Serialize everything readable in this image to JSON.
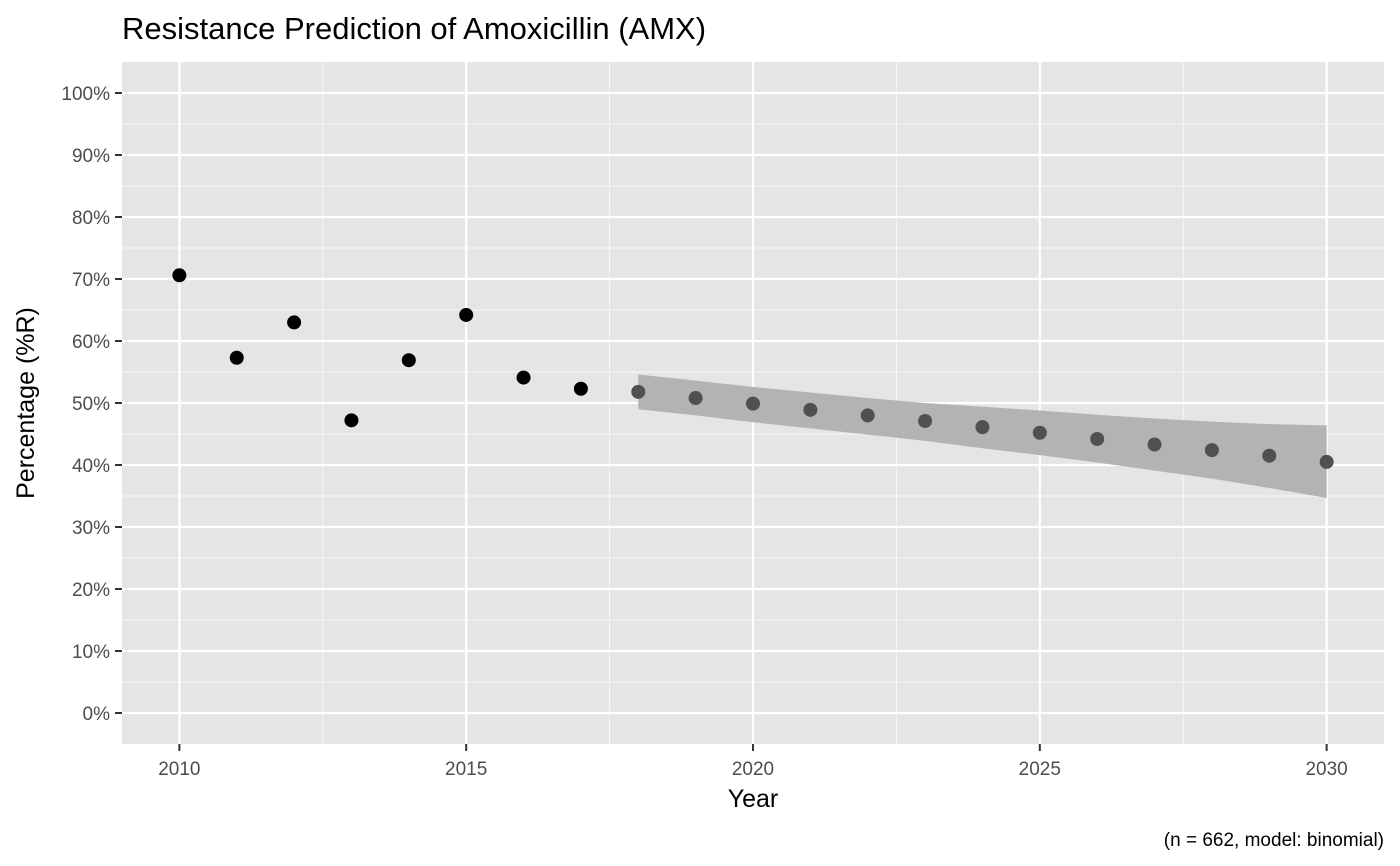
{
  "chart_data": {
    "type": "scatter",
    "title": "Resistance Prediction of Amoxicillin (AMX)",
    "xlabel": "Year",
    "ylabel": "Percentage (%R)",
    "caption": "(n = 662, model: binomial)",
    "xlim": [
      2009,
      2031
    ],
    "ylim": [
      -5,
      105
    ],
    "x_ticks": [
      2010,
      2015,
      2020,
      2025,
      2030
    ],
    "x_tick_labels": [
      "2010",
      "2015",
      "2020",
      "2025",
      "2030"
    ],
    "y_ticks": [
      0,
      10,
      20,
      30,
      40,
      50,
      60,
      70,
      80,
      90,
      100
    ],
    "y_tick_labels": [
      "0%",
      "10%",
      "20%",
      "30%",
      "40%",
      "50%",
      "60%",
      "70%",
      "80%",
      "90%",
      "100%"
    ],
    "grid": true,
    "legend": "none",
    "colors": {
      "panel": "#e5e5e5",
      "grid": "#ffffff",
      "observed": "#000000",
      "predicted": "#505050",
      "band": "#b3b3b3"
    },
    "series": [
      {
        "kind": "observed",
        "x": [
          2010,
          2011,
          2012,
          2013,
          2014,
          2015,
          2016,
          2017
        ],
        "y": [
          70.6,
          57.3,
          63.0,
          47.2,
          56.9,
          64.2,
          54.1,
          52.3
        ]
      },
      {
        "kind": "predicted",
        "x": [
          2018,
          2019,
          2020,
          2021,
          2022,
          2023,
          2024,
          2025,
          2026,
          2027,
          2028,
          2029,
          2030
        ],
        "y": [
          51.8,
          50.8,
          49.9,
          48.9,
          48.0,
          47.1,
          46.1,
          45.2,
          44.2,
          43.3,
          42.4,
          41.5,
          40.5
        ],
        "lower": [
          49.0,
          48.0,
          46.9,
          45.9,
          44.9,
          43.9,
          42.7,
          41.6,
          40.4,
          39.1,
          37.8,
          36.3,
          34.7
        ],
        "upper": [
          54.6,
          53.6,
          52.6,
          51.7,
          50.8,
          50.0,
          49.4,
          48.8,
          48.1,
          47.5,
          47.0,
          46.6,
          46.4
        ]
      }
    ]
  }
}
